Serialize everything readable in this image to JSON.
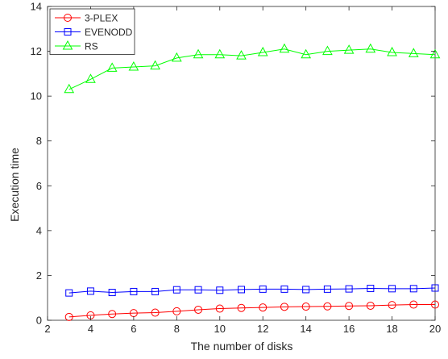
{
  "chart_data": {
    "type": "line",
    "xlabel": "The number of disks",
    "ylabel": "Execution time",
    "xlim": [
      2,
      20
    ],
    "ylim": [
      0,
      14
    ],
    "xticks": [
      2,
      4,
      6,
      8,
      10,
      12,
      14,
      16,
      18,
      20
    ],
    "yticks": [
      0,
      2,
      4,
      6,
      8,
      10,
      12,
      14
    ],
    "grid": false,
    "legend_position": "top-left",
    "x": [
      3,
      4,
      5,
      6,
      7,
      8,
      9,
      10,
      11,
      12,
      13,
      14,
      15,
      16,
      17,
      18,
      19,
      20
    ],
    "series": [
      {
        "name": "3-PLEX",
        "color": "#ff0000",
        "marker": "circle",
        "values": [
          0.15,
          0.22,
          0.28,
          0.32,
          0.34,
          0.4,
          0.47,
          0.52,
          0.55,
          0.57,
          0.6,
          0.61,
          0.62,
          0.64,
          0.65,
          0.68,
          0.7,
          0.7
        ]
      },
      {
        "name": "EVENODD",
        "color": "#0000ff",
        "marker": "square",
        "values": [
          1.22,
          1.3,
          1.24,
          1.28,
          1.28,
          1.36,
          1.36,
          1.34,
          1.37,
          1.39,
          1.39,
          1.37,
          1.39,
          1.4,
          1.42,
          1.41,
          1.41,
          1.44
        ]
      },
      {
        "name": "RS",
        "color": "#00ff00",
        "marker": "triangle",
        "values": [
          10.3,
          10.75,
          11.25,
          11.3,
          11.35,
          11.7,
          11.85,
          11.85,
          11.8,
          11.95,
          12.1,
          11.85,
          12.0,
          12.05,
          12.1,
          11.95,
          11.9,
          11.85
        ]
      }
    ]
  }
}
